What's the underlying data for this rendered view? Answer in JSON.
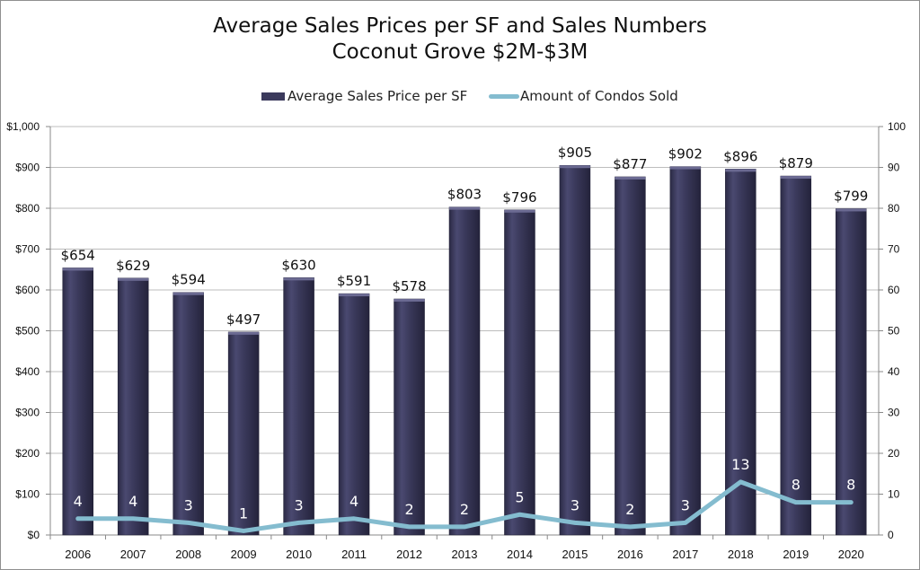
{
  "chart_data": {
    "type": "bar",
    "title": "Average Sales Prices per SF and Sales Numbers",
    "subtitle": "Coconut Grove $2M-$3M",
    "categories": [
      "2006",
      "2007",
      "2008",
      "2009",
      "2010",
      "2011",
      "2012",
      "2013",
      "2014",
      "2015",
      "2016",
      "2017",
      "2018",
      "2019",
      "2020"
    ],
    "series": [
      {
        "name": "Average Sales Price per SF",
        "type": "bar",
        "axis": "left",
        "color": "#3b3a5c",
        "values": [
          654,
          629,
          594,
          497,
          630,
          591,
          578,
          803,
          796,
          905,
          877,
          902,
          896,
          879,
          799
        ],
        "labels": [
          "$654",
          "$629",
          "$594",
          "$497",
          "$630",
          "$591",
          "$578",
          "$803",
          "$796",
          "$905",
          "$877",
          "$902",
          "$896",
          "$879",
          "$799"
        ]
      },
      {
        "name": "Amount of Condos Sold",
        "type": "line",
        "axis": "right",
        "color": "#84bccf",
        "values": [
          4,
          4,
          3,
          1,
          3,
          4,
          2,
          2,
          5,
          3,
          2,
          3,
          13,
          8,
          8
        ],
        "labels": [
          "4",
          "4",
          "3",
          "1",
          "3",
          "4",
          "2",
          "2",
          "5",
          "3",
          "2",
          "3",
          "13",
          "8",
          "8"
        ]
      }
    ],
    "y_left": {
      "ylim": [
        0,
        1000
      ],
      "ticks": [
        0,
        100,
        200,
        300,
        400,
        500,
        600,
        700,
        800,
        900,
        1000
      ],
      "tick_labels": [
        "$0",
        "$100",
        "$200",
        "$300",
        "$400",
        "$500",
        "$600",
        "$700",
        "$800",
        "$900",
        "$1,000"
      ]
    },
    "y_right": {
      "ylim": [
        0,
        100
      ],
      "ticks": [
        0,
        10,
        20,
        30,
        40,
        50,
        60,
        70,
        80,
        90,
        100
      ],
      "tick_labels": [
        "0",
        "10",
        "20",
        "30",
        "40",
        "50",
        "60",
        "70",
        "80",
        "90",
        "100"
      ]
    },
    "grid": true,
    "legend": "top-center"
  }
}
